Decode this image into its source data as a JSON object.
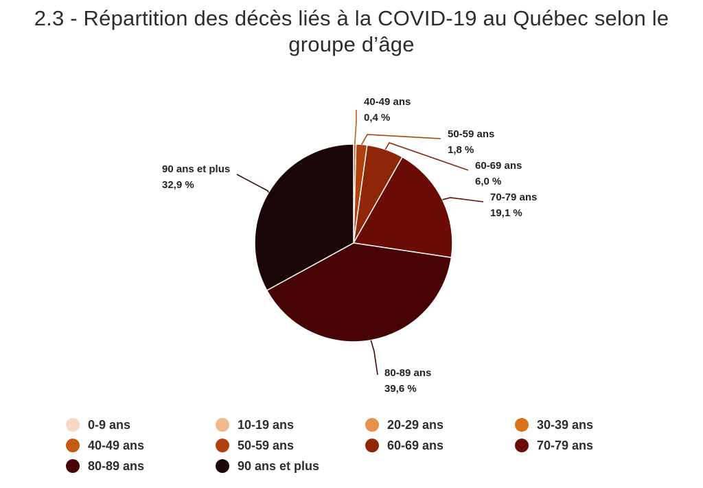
{
  "title_lines": [
    "2.3 - Répartition des décès liés à la COVID-19 au Québec selon le",
    "groupe d’âge"
  ],
  "chart_data": {
    "type": "pie",
    "title": "2.3 - Répartition des décès liés à la COVID-19 au Québec selon le groupe d’âge",
    "slices": [
      {
        "name": "0-9 ans",
        "value": 0.0,
        "color": "#f7d9c3"
      },
      {
        "name": "10-19 ans",
        "value": 0.0,
        "color": "#f2b98c"
      },
      {
        "name": "20-29 ans",
        "value": 0.0,
        "color": "#e8914a"
      },
      {
        "name": "30-39 ans",
        "value": 0.0,
        "color": "#d9731c"
      },
      {
        "name": "40-49 ans",
        "value": 0.4,
        "label": "0,4 %",
        "color": "#c45a12"
      },
      {
        "name": "50-59 ans",
        "value": 1.8,
        "label": "1,8 %",
        "color": "#b0400e"
      },
      {
        "name": "60-69 ans",
        "value": 6.0,
        "label": "6,0 %",
        "color": "#8f2608"
      },
      {
        "name": "70-79 ans",
        "value": 19.1,
        "label": "19,1 %",
        "color": "#6a0c05"
      },
      {
        "name": "80-89 ans",
        "value": 39.6,
        "label": "39,6 %",
        "color": "#470204"
      },
      {
        "name": "90 ans et plus",
        "value": 32.9,
        "label": "32,9 %",
        "color": "#1a0606"
      }
    ],
    "start_angle": "12 o'clock",
    "direction": "clockwise",
    "legend_position": "bottom"
  }
}
